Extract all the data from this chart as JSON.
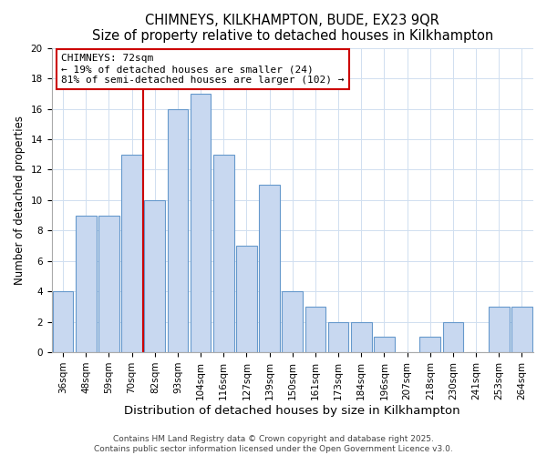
{
  "title": "CHIMNEYS, KILKHAMPTON, BUDE, EX23 9QR",
  "subtitle": "Size of property relative to detached houses in Kilkhampton",
  "xlabel": "Distribution of detached houses by size in Kilkhampton",
  "ylabel": "Number of detached properties",
  "bar_labels": [
    "36sqm",
    "48sqm",
    "59sqm",
    "70sqm",
    "82sqm",
    "93sqm",
    "104sqm",
    "116sqm",
    "127sqm",
    "139sqm",
    "150sqm",
    "161sqm",
    "173sqm",
    "184sqm",
    "196sqm",
    "207sqm",
    "218sqm",
    "230sqm",
    "241sqm",
    "253sqm",
    "264sqm"
  ],
  "bar_values": [
    4,
    9,
    9,
    13,
    10,
    16,
    17,
    13,
    7,
    11,
    4,
    3,
    2,
    2,
    1,
    0,
    1,
    2,
    0,
    3,
    3
  ],
  "bar_color": "#c8d8f0",
  "bar_edge_color": "#6699cc",
  "grid_color": "#d0dff0",
  "vline_x_index": 3,
  "vline_color": "#cc0000",
  "annotation_title": "CHIMNEYS: 72sqm",
  "annotation_line1": "← 19% of detached houses are smaller (24)",
  "annotation_line2": "81% of semi-detached houses are larger (102) →",
  "annotation_box_color": "#ffffff",
  "annotation_box_edge": "#cc0000",
  "ylim": [
    0,
    20
  ],
  "yticks": [
    0,
    2,
    4,
    6,
    8,
    10,
    12,
    14,
    16,
    18,
    20
  ],
  "footer1": "Contains HM Land Registry data © Crown copyright and database right 2025.",
  "footer2": "Contains public sector information licensed under the Open Government Licence v3.0.",
  "title_fontsize": 10.5,
  "xlabel_fontsize": 9.5,
  "ylabel_fontsize": 8.5,
  "tick_fontsize": 7.5,
  "footer_fontsize": 6.5
}
